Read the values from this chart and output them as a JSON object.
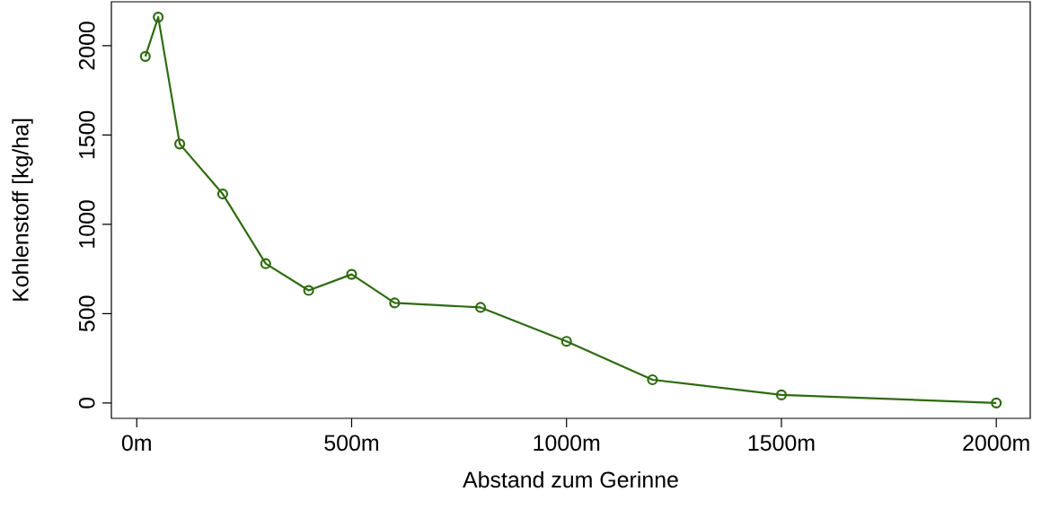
{
  "chart_data": {
    "type": "line",
    "xlabel": "Abstand zum Gerinne",
    "ylabel": "Kohlenstoff [kg/ha]",
    "x": [
      20,
      50,
      100,
      200,
      300,
      400,
      500,
      600,
      800,
      1000,
      1200,
      1500,
      2000
    ],
    "series": [
      {
        "color": "#2e6b10",
        "values": [
          1940,
          2160,
          1450,
          1170,
          780,
          630,
          720,
          560,
          535,
          345,
          130,
          45,
          0
        ]
      }
    ],
    "xlim": [
      -59,
      2079
    ],
    "ylim": [
      -86,
      2246
    ],
    "xticks": [
      {
        "value": 0,
        "label": "0m"
      },
      {
        "value": 500,
        "label": "500m"
      },
      {
        "value": 1000,
        "label": "1000m"
      },
      {
        "value": 1500,
        "label": "1500m"
      },
      {
        "value": 2000,
        "label": "2000m"
      }
    ],
    "yticks": [
      0,
      500,
      1000,
      1500,
      2000
    ],
    "marker": "circle",
    "line_style": "solid"
  }
}
